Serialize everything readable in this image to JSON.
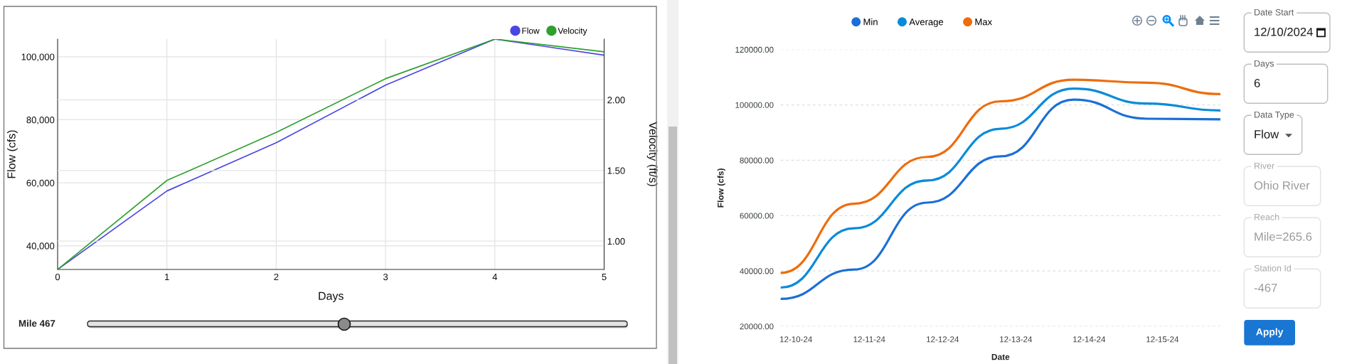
{
  "chart_data": [
    {
      "type": "line",
      "xlabel": "Days",
      "ylabel": "Flow (cfs)",
      "y2label": "Velocity (ft/s)",
      "x": [
        0,
        1,
        2,
        3,
        4,
        5
      ],
      "xlim": [
        0,
        5
      ],
      "xticks": [
        0,
        1,
        2,
        3,
        4,
        5
      ],
      "ylim": [
        32500,
        105600
      ],
      "yticks": [
        {
          "value": 40000,
          "label": "40,000"
        },
        {
          "value": 60000,
          "label": "60,000"
        },
        {
          "value": 80000,
          "label": "80,000"
        },
        {
          "value": 100000,
          "label": "100,000"
        }
      ],
      "y2lim": [
        0.8,
        2.43
      ],
      "y2ticks": [
        {
          "value": 1,
          "label": "1.00"
        },
        {
          "value": 1.5,
          "label": "1.50"
        },
        {
          "value": 2,
          "label": "2.00"
        }
      ],
      "series": [
        {
          "name": "Flow",
          "color": "#4b45e3",
          "values": [
            32500,
            57400,
            72700,
            91000,
            105600,
            100500
          ]
        },
        {
          "name": "Velocity",
          "color": "#2ea02e",
          "axis": "y2",
          "values": [
            0.8,
            1.43,
            1.77,
            2.15,
            2.43,
            2.34
          ]
        }
      ],
      "grid": true,
      "legend": "top right",
      "annotations": [
        "Mile 467"
      ]
    },
    {
      "type": "line",
      "xlabel": "Date",
      "ylabel": "Flow (cfs)",
      "x": [
        "2024-12-09T19:00",
        "2024-12-10T19:00",
        "2024-12-11T19:00",
        "2024-12-12T19:00",
        "2024-12-13T19:00",
        "2024-12-14T19:00",
        "2024-12-15T19:00"
      ],
      "xlim": [
        "2024-12-09T19:00",
        "2024-12-15T19:00"
      ],
      "xticks": [
        {
          "value": "2024-12-10",
          "label": "12-10-24"
        },
        {
          "value": "2024-12-11",
          "label": "12-11-24"
        },
        {
          "value": "2024-12-12",
          "label": "12-12-24"
        },
        {
          "value": "2024-12-13",
          "label": "12-13-24"
        },
        {
          "value": "2024-12-14",
          "label": "12-14-24"
        },
        {
          "value": "2024-12-15",
          "label": "12-15-24"
        }
      ],
      "ylim": [
        20000,
        120000
      ],
      "yticks": [
        {
          "value": 20000,
          "label": "20000.00"
        },
        {
          "value": 40000,
          "label": "40000.00"
        },
        {
          "value": 60000,
          "label": "60000.00"
        },
        {
          "value": 80000,
          "label": "80000.00"
        },
        {
          "value": 100000,
          "label": "100000.00"
        },
        {
          "value": 120000,
          "label": "120000.00"
        }
      ],
      "series": [
        {
          "name": "Min",
          "color": "#1c6fd6",
          "values": [
            29900,
            40500,
            64700,
            81400,
            101900,
            95000,
            94800
          ]
        },
        {
          "name": "Average",
          "color": "#0a8bd9",
          "values": [
            34000,
            55400,
            72700,
            91400,
            105900,
            100500,
            98000
          ]
        },
        {
          "name": "Max",
          "color": "#ee6c0c",
          "values": [
            39300,
            64300,
            81200,
            101300,
            109100,
            108000,
            103900
          ]
        }
      ],
      "grid": "y",
      "legend": "top"
    },
    {
      "type": "other",
      "annotations": [
        "Date Start",
        "12/10/2024",
        "Days",
        "6",
        "Data Type",
        "Flow",
        "River",
        "Ohio River",
        "Reach",
        "Mile=265.6",
        "Station Id",
        "-467",
        "Apply"
      ]
    }
  ]
}
